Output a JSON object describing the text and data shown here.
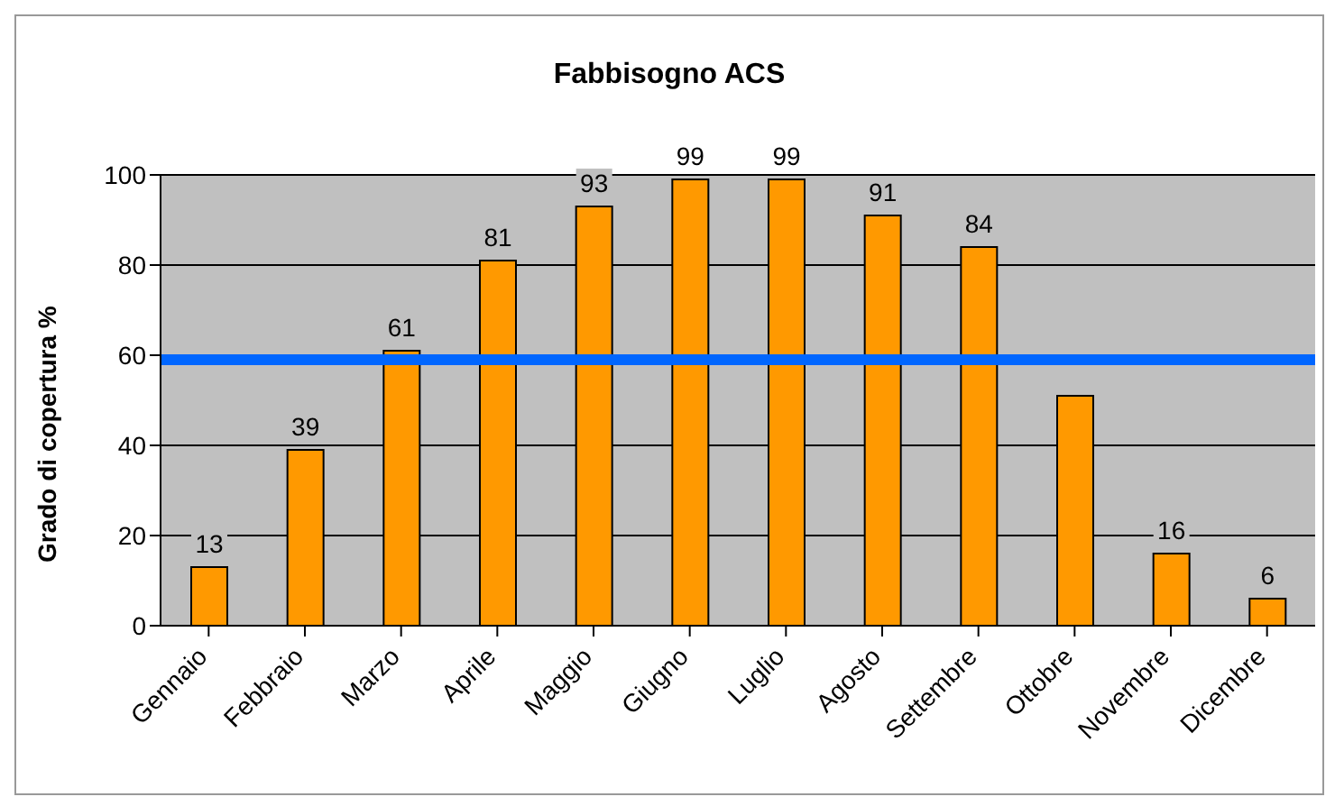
{
  "chart_data": {
    "type": "bar",
    "title": "Fabbisogno ACS",
    "ylabel": "Grado di copertura %",
    "categories": [
      "Gennaio",
      "Febbraio",
      "Marzo",
      "Aprile",
      "Maggio",
      "Giugno",
      "Luglio",
      "Agosto",
      "Settembre",
      "Ottobre",
      "Novembre",
      "Dicembre"
    ],
    "values": [
      13,
      39,
      61,
      81,
      93,
      99,
      99,
      91,
      84,
      51,
      16,
      6
    ],
    "value_labels": [
      "13",
      "39",
      "61",
      "81",
      "93",
      "99",
      "99",
      "91",
      "84",
      null,
      "16",
      "6"
    ],
    "color": "#ff9900",
    "ylim": [
      0,
      100
    ],
    "yticks": [
      0,
      20,
      40,
      60,
      80,
      100
    ],
    "grid": "y",
    "ref_lines": [
      {
        "axis": "y",
        "value": 59,
        "color": "#0066ff"
      }
    ]
  }
}
